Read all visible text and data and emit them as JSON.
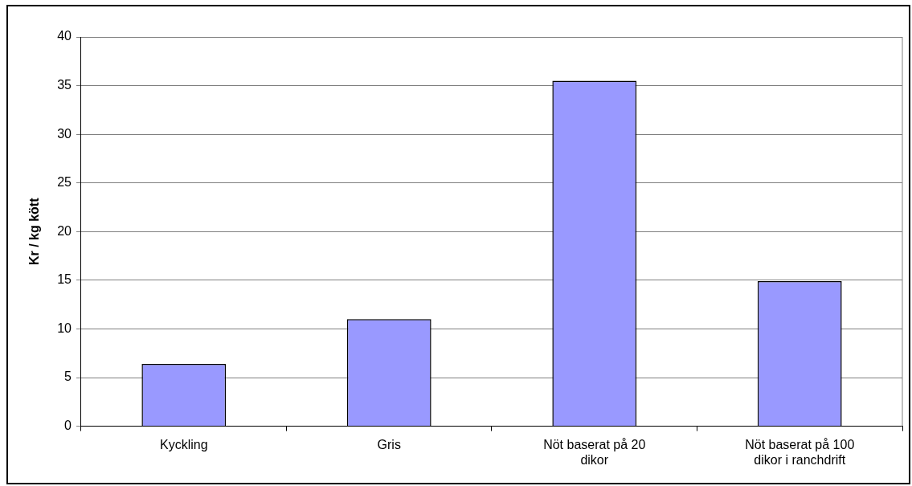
{
  "chart_data": {
    "type": "bar",
    "ylabel": "Kr / kg kött",
    "categories": [
      "Kyckling",
      "Gris",
      "Nöt baserat på 20 dikor",
      "Nöt baserat på 100 dikor i ranchdrift"
    ],
    "values": [
      6.4,
      11,
      35.5,
      14.9
    ],
    "color": "#9999ff",
    "ylim": [
      0,
      40
    ],
    "yticks": [
      0,
      5,
      10,
      15,
      20,
      25,
      30,
      35,
      40
    ],
    "grid": "y",
    "legend": false
  }
}
